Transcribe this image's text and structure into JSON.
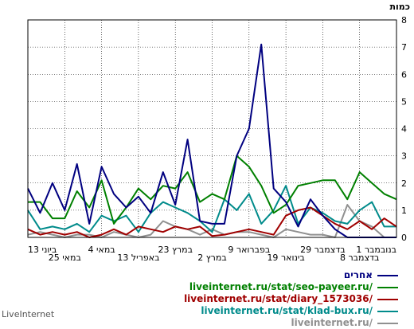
{
  "chart_data": {
    "type": "line",
    "ylabel": "כמות",
    "ylim": [
      0,
      8
    ],
    "yticks": [
      0,
      1,
      2,
      3,
      4,
      5,
      6,
      7,
      8
    ],
    "x_tick_labels": [
      "1 בנובמבר",
      "8 בדצמבר",
      "29 בדצמבר",
      "19 בינואר",
      "9 בפברואר",
      "2 במרץ",
      "23 במרץ",
      "13 באפריל",
      "4 במאי",
      "25 במאי",
      "13 ביוני"
    ],
    "series": [
      {
        "name": "אחרים",
        "color": "#000080",
        "values": [
          0,
          0,
          0,
          0,
          0,
          0.3,
          0.8,
          1.4,
          0.4,
          1.3,
          1.8,
          7.1,
          4,
          3,
          0.5,
          0.5,
          0.6,
          3.6,
          1.2,
          2.4,
          0.9,
          1.5,
          1.1,
          1.6,
          2.6,
          0.5,
          2.7,
          1,
          2,
          0.9,
          1.8
        ]
      },
      {
        "name": "liveinternet.ru/stat/seo-payeer.ru/",
        "color": "#008000",
        "values": [
          1.4,
          1.6,
          2,
          2.4,
          1.4,
          2.1,
          2.1,
          2,
          1.9,
          1.2,
          0.9,
          1.9,
          2.6,
          3,
          1.4,
          1.6,
          1.3,
          2.4,
          1.8,
          1.9,
          1.4,
          1.8,
          1.1,
          0.5,
          2.1,
          1.1,
          1.7,
          0.7,
          0.7,
          1.3,
          1.3
        ]
      },
      {
        "name": "liveinternet.ru/stat/diary_1573036/",
        "color": "#a00000",
        "values": [
          0.4,
          0.7,
          0.3,
          0.6,
          0.3,
          0.5,
          0.8,
          1.1,
          1,
          0.8,
          0.1,
          0.2,
          0.3,
          0.2,
          0.1,
          0.05,
          0.4,
          0.3,
          0.4,
          0.2,
          0.3,
          0.4,
          0.1,
          0.3,
          0.1,
          0,
          0.2,
          0.1,
          0.2,
          0.1,
          0.3
        ]
      },
      {
        "name": "liveinternet.ru/stat/klad-bux.ru/",
        "color": "#008b8b",
        "values": [
          0.4,
          0.4,
          1.3,
          1,
          0.5,
          0.6,
          0.9,
          1.1,
          0.5,
          1.9,
          1,
          0.5,
          1.6,
          1,
          1.4,
          0.2,
          0.6,
          0.9,
          1.1,
          1.3,
          0.9,
          0.2,
          0.8,
          0.6,
          0.8,
          0.2,
          0.5,
          0.3,
          0.4,
          0.3,
          1
        ]
      },
      {
        "name": "liveinternet.ru/",
        "color": "#909090",
        "values": [
          0,
          0,
          0.4,
          0.6,
          1.2,
          0,
          0.1,
          0.1,
          0.2,
          0.3,
          0,
          0.1,
          0.2,
          0.2,
          0.1,
          0.3,
          0.1,
          0.3,
          0.4,
          0.6,
          0.1,
          0,
          0.1,
          0.2,
          0,
          0.1,
          0.1,
          0,
          0.1,
          0.2,
          0.1
        ]
      }
    ]
  },
  "footer": {
    "brand": "LiveInternet"
  }
}
